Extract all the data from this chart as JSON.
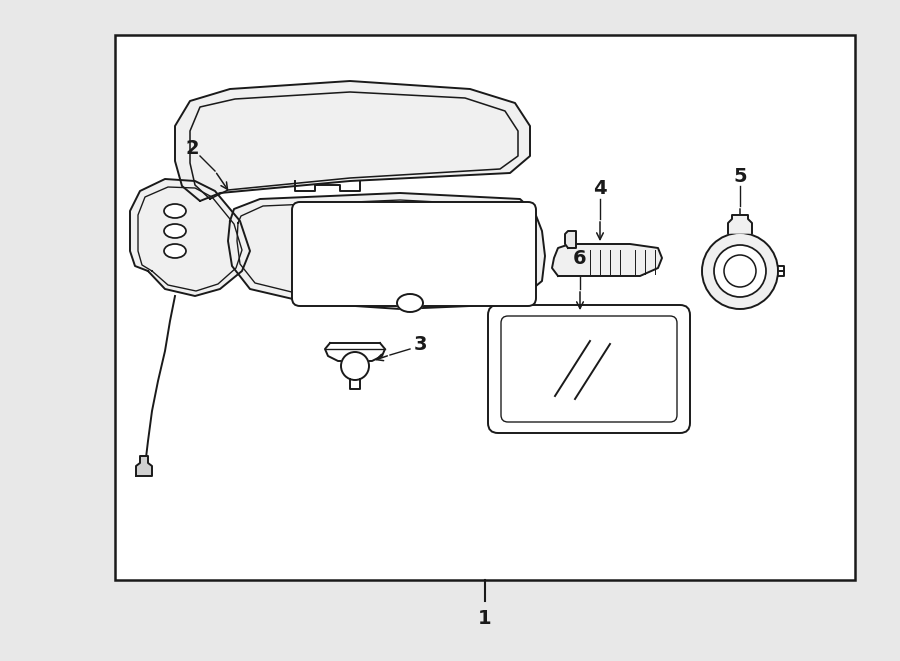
{
  "bg_color": "#e8e8e8",
  "box_bg": "white",
  "line_color": "#1a1a1a",
  "lw": 1.4,
  "label_fontsize": 13,
  "figsize": [
    9.0,
    6.61
  ],
  "dpi": 100
}
